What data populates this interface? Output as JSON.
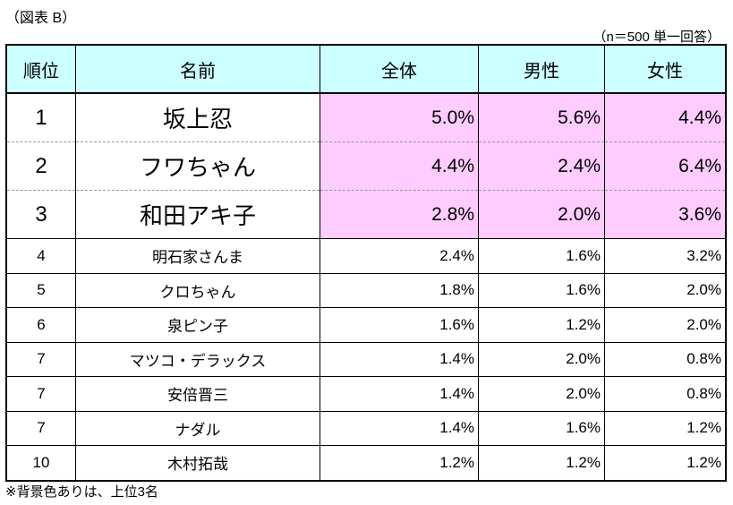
{
  "caption": "（図表 B）",
  "note": "（n＝500 単一回答）",
  "headers": [
    "順位",
    "名前",
    "全体",
    "男性",
    "女性"
  ],
  "rows": [
    {
      "rank": "1",
      "name": "坂上忍",
      "all": "5.0%",
      "male": "5.6%",
      "female": "4.4%"
    },
    {
      "rank": "2",
      "name": "フワちゃん",
      "all": "4.4%",
      "male": "2.4%",
      "female": "6.4%"
    },
    {
      "rank": "3",
      "name": "和田アキ子",
      "all": "2.8%",
      "male": "2.0%",
      "female": "3.6%"
    },
    {
      "rank": "4",
      "name": "明石家さんま",
      "all": "2.4%",
      "male": "1.6%",
      "female": "3.2%"
    },
    {
      "rank": "5",
      "name": "クロちゃん",
      "all": "1.8%",
      "male": "1.6%",
      "female": "2.0%"
    },
    {
      "rank": "6",
      "name": "泉ピン子",
      "all": "1.6%",
      "male": "1.2%",
      "female": "2.0%"
    },
    {
      "rank": "7",
      "name": "マツコ・デラックス",
      "all": "1.4%",
      "male": "2.0%",
      "female": "0.8%"
    },
    {
      "rank": "7",
      "name": "安倍晋三",
      "all": "1.4%",
      "male": "2.0%",
      "female": "0.8%"
    },
    {
      "rank": "7",
      "name": "ナダル",
      "all": "1.4%",
      "male": "1.6%",
      "female": "1.2%"
    },
    {
      "rank": "10",
      "name": "木村拓哉",
      "all": "1.2%",
      "male": "1.2%",
      "female": "1.2%"
    }
  ],
  "footnote": "※背景色ありは、上位3名",
  "colors": {
    "header_bg": "#ccffff",
    "highlight_bg": "#ffccff"
  }
}
